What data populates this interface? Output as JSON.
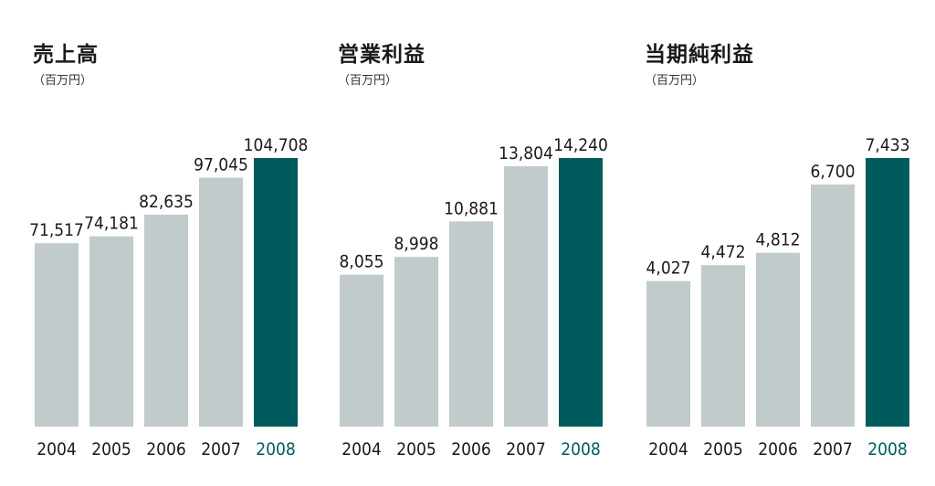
{
  "colors": {
    "bar": "#c2cbcc",
    "highlight": "#005c5c",
    "text": "#1a1a1a"
  },
  "chart_data": [
    {
      "type": "bar",
      "title": "売上高",
      "unit": "（百万円）",
      "categories": [
        "2004",
        "2005",
        "2006",
        "2007",
        "2008"
      ],
      "values": [
        71517,
        74181,
        82635,
        97045,
        104708
      ],
      "value_labels": [
        "71,517",
        "74,181",
        "82,635",
        "97,045",
        "104,708"
      ],
      "highlight": "2008"
    },
    {
      "type": "bar",
      "title": "営業利益",
      "unit": "（百万円）",
      "categories": [
        "2004",
        "2005",
        "2006",
        "2007",
        "2008"
      ],
      "values": [
        8055,
        8998,
        10881,
        13804,
        14240
      ],
      "value_labels": [
        "8,055",
        "8,998",
        "10,881",
        "13,804",
        "14,240"
      ],
      "highlight": "2008"
    },
    {
      "type": "bar",
      "title": "当期純利益",
      "unit": "（百万円）",
      "categories": [
        "2004",
        "2005",
        "2006",
        "2007",
        "2008"
      ],
      "values": [
        4027,
        4472,
        4812,
        6700,
        7433
      ],
      "value_labels": [
        "4,027",
        "4,472",
        "4,812",
        "6,700",
        "7,433"
      ],
      "highlight": "2008"
    }
  ]
}
